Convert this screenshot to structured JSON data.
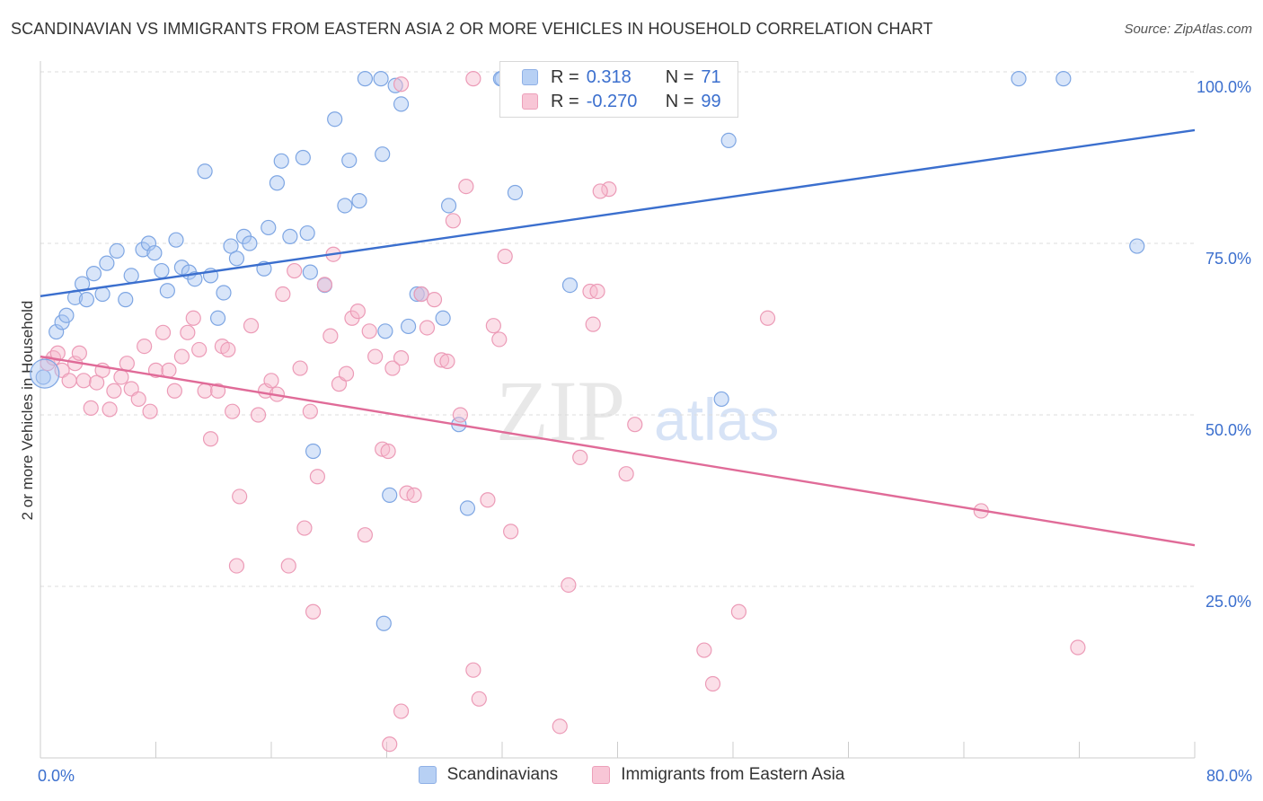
{
  "title": "SCANDINAVIAN VS IMMIGRANTS FROM EASTERN ASIA 2 OR MORE VEHICLES IN HOUSEHOLD CORRELATION CHART",
  "source": "Source: ZipAtlas.com",
  "watermark": {
    "zip": "ZIP",
    "atlas": "atlas"
  },
  "colors": {
    "blue": "#3b6fce",
    "blue_fill": "#a9c6f2",
    "pink": "#e06b98",
    "pink_fill": "#f6b9cd",
    "grid": "#dddddd",
    "axis_text": "#3b6fce"
  },
  "legend": {
    "rows": [
      {
        "r_label": "R =",
        "r_value": "0.318",
        "n_label": "N =",
        "n_value": "71"
      },
      {
        "r_label": "R =",
        "r_value": "-0.270",
        "n_label": "N =",
        "n_value": "99"
      }
    ]
  },
  "chart_data": {
    "type": "scatter",
    "title": "SCANDINAVIAN VS IMMIGRANTS FROM EASTERN ASIA 2 OR MORE VEHICLES IN HOUSEHOLD CORRELATION CHART",
    "xlabel": "",
    "ylabel": "2 or more Vehicles in Household",
    "xlim": [
      0,
      80
    ],
    "ylim": [
      0,
      100
    ],
    "x_tick_labels": [
      "0.0%",
      "80.0%"
    ],
    "y_tick_labels": [
      "100.0%",
      "75.0%",
      "50.0%",
      "25.0%"
    ],
    "y_ticks": [
      100,
      75,
      50,
      25
    ],
    "grid": true,
    "legend_position": "bottom",
    "series": [
      {
        "name": "Scandinavians",
        "color": "#3b6fce",
        "R": 0.318,
        "N": 71,
        "trend": [
          [
            0,
            67.3
          ],
          [
            80,
            91.5
          ]
        ],
        "points": [
          [
            0.2,
            55.5
          ],
          [
            1.1,
            62.1
          ],
          [
            1.5,
            63.5
          ],
          [
            1.8,
            64.5
          ],
          [
            2.4,
            67.1
          ],
          [
            2.9,
            69.1
          ],
          [
            3.2,
            66.8
          ],
          [
            3.7,
            70.6
          ],
          [
            4.3,
            67.6
          ],
          [
            4.6,
            72.1
          ],
          [
            5.3,
            73.9
          ],
          [
            5.9,
            66.8
          ],
          [
            6.3,
            70.3
          ],
          [
            7.1,
            74.1
          ],
          [
            7.5,
            75.0
          ],
          [
            7.9,
            73.6
          ],
          [
            8.4,
            71.0
          ],
          [
            8.8,
            68.1
          ],
          [
            9.4,
            75.5
          ],
          [
            9.8,
            71.5
          ],
          [
            10.3,
            70.8
          ],
          [
            10.7,
            69.8
          ],
          [
            11.4,
            85.5
          ],
          [
            11.8,
            70.3
          ],
          [
            12.3,
            64.1
          ],
          [
            12.7,
            67.8
          ],
          [
            13.2,
            74.6
          ],
          [
            13.6,
            72.8
          ],
          [
            14.1,
            76.0
          ],
          [
            14.5,
            75.0
          ],
          [
            15.5,
            71.3
          ],
          [
            15.8,
            77.3
          ],
          [
            16.4,
            83.8
          ],
          [
            16.7,
            87.0
          ],
          [
            17.3,
            76.0
          ],
          [
            18.2,
            87.5
          ],
          [
            18.7,
            70.8
          ],
          [
            18.5,
            76.5
          ],
          [
            18.9,
            44.7
          ],
          [
            19.7,
            68.9
          ],
          [
            20.4,
            93.1
          ],
          [
            21.1,
            80.5
          ],
          [
            21.4,
            87.1
          ],
          [
            22.1,
            81.2
          ],
          [
            23.7,
            88.0
          ],
          [
            23.9,
            62.2
          ],
          [
            24.2,
            38.3
          ],
          [
            24.6,
            98.0
          ],
          [
            25.0,
            95.3
          ],
          [
            25.5,
            62.9
          ],
          [
            26.1,
            67.6
          ],
          [
            26.4,
            67.6
          ],
          [
            27.9,
            64.1
          ],
          [
            28.3,
            80.5
          ],
          [
            29.0,
            48.6
          ],
          [
            29.6,
            36.4
          ],
          [
            32.9,
            82.4
          ],
          [
            36.7,
            68.9
          ],
          [
            23.8,
            19.6
          ],
          [
            47.2,
            52.3
          ],
          [
            47.7,
            90.0
          ],
          [
            23.6,
            99.0
          ],
          [
            35.4,
            99.0
          ],
          [
            37.9,
            99.0
          ],
          [
            32.0,
            99.0
          ],
          [
            67.8,
            99.0
          ],
          [
            70.9,
            99.0
          ],
          [
            76.0,
            74.6
          ],
          [
            35.8,
            99.0
          ],
          [
            22.5,
            99.0
          ],
          [
            31.9,
            99.0
          ]
        ]
      },
      {
        "name": "Immigrants from Eastern Asia",
        "color": "#e06b98",
        "R": -0.27,
        "N": 99,
        "trend": [
          [
            0,
            58.5
          ],
          [
            80,
            31.0
          ]
        ],
        "points": [
          [
            0.5,
            57.5
          ],
          [
            0.9,
            58.3
          ],
          [
            1.2,
            59.0
          ],
          [
            1.5,
            56.5
          ],
          [
            2.0,
            55.0
          ],
          [
            2.4,
            57.5
          ],
          [
            2.7,
            59.0
          ],
          [
            3.0,
            55.0
          ],
          [
            3.5,
            51.0
          ],
          [
            3.9,
            54.7
          ],
          [
            4.3,
            56.5
          ],
          [
            4.8,
            50.8
          ],
          [
            5.1,
            53.5
          ],
          [
            5.6,
            55.5
          ],
          [
            6.0,
            57.5
          ],
          [
            6.3,
            53.8
          ],
          [
            6.8,
            52.3
          ],
          [
            7.2,
            60.0
          ],
          [
            7.6,
            50.5
          ],
          [
            8.0,
            56.5
          ],
          [
            8.5,
            62.0
          ],
          [
            8.9,
            56.5
          ],
          [
            9.3,
            53.5
          ],
          [
            9.8,
            58.5
          ],
          [
            10.2,
            62.0
          ],
          [
            10.6,
            64.1
          ],
          [
            11.0,
            59.5
          ],
          [
            11.4,
            53.5
          ],
          [
            11.8,
            46.5
          ],
          [
            12.3,
            53.5
          ],
          [
            12.6,
            60.0
          ],
          [
            13.0,
            59.5
          ],
          [
            13.3,
            50.5
          ],
          [
            13.8,
            38.1
          ],
          [
            13.6,
            28.0
          ],
          [
            14.6,
            63.0
          ],
          [
            15.1,
            50.0
          ],
          [
            15.6,
            53.5
          ],
          [
            16.0,
            55.0
          ],
          [
            16.4,
            53.0
          ],
          [
            16.8,
            67.6
          ],
          [
            17.2,
            28.0
          ],
          [
            17.6,
            71.0
          ],
          [
            18.0,
            56.8
          ],
          [
            18.3,
            33.5
          ],
          [
            18.7,
            50.5
          ],
          [
            18.9,
            21.3
          ],
          [
            19.2,
            41.0
          ],
          [
            19.7,
            69.0
          ],
          [
            20.1,
            61.5
          ],
          [
            20.3,
            73.4
          ],
          [
            20.7,
            54.5
          ],
          [
            21.2,
            56.0
          ],
          [
            21.6,
            64.1
          ],
          [
            22.0,
            65.1
          ],
          [
            22.5,
            32.5
          ],
          [
            22.8,
            62.2
          ],
          [
            23.2,
            58.5
          ],
          [
            23.7,
            45.0
          ],
          [
            24.1,
            44.7
          ],
          [
            24.4,
            56.8
          ],
          [
            25.0,
            58.3
          ],
          [
            25.4,
            38.6
          ],
          [
            25.9,
            38.3
          ],
          [
            26.4,
            67.6
          ],
          [
            26.8,
            62.7
          ],
          [
            27.3,
            66.8
          ],
          [
            27.8,
            58.0
          ],
          [
            28.2,
            57.8
          ],
          [
            28.6,
            78.3
          ],
          [
            29.1,
            50.0
          ],
          [
            29.5,
            83.3
          ],
          [
            30.0,
            12.8
          ],
          [
            30.4,
            8.6
          ],
          [
            31.0,
            37.6
          ],
          [
            31.4,
            63.0
          ],
          [
            31.8,
            61.0
          ],
          [
            32.2,
            73.1
          ],
          [
            32.6,
            33.0
          ],
          [
            25.0,
            6.8
          ],
          [
            36.6,
            25.2
          ],
          [
            38.1,
            68.0
          ],
          [
            38.3,
            63.2
          ],
          [
            37.4,
            43.8
          ],
          [
            39.4,
            82.9
          ],
          [
            40.6,
            41.4
          ],
          [
            41.2,
            48.6
          ],
          [
            36.0,
            4.6
          ],
          [
            46.0,
            15.7
          ],
          [
            46.6,
            10.8
          ],
          [
            48.4,
            21.3
          ],
          [
            50.4,
            64.1
          ],
          [
            65.2,
            36.0
          ],
          [
            71.9,
            16.1
          ],
          [
            24.2,
            2.0
          ],
          [
            38.8,
            82.6
          ],
          [
            25.0,
            98.2
          ],
          [
            30.0,
            99.0
          ],
          [
            38.6,
            68.0
          ]
        ]
      }
    ]
  },
  "bottom_legend": [
    {
      "label": "Scandinavians"
    },
    {
      "label": "Immigrants from Eastern Asia"
    }
  ]
}
